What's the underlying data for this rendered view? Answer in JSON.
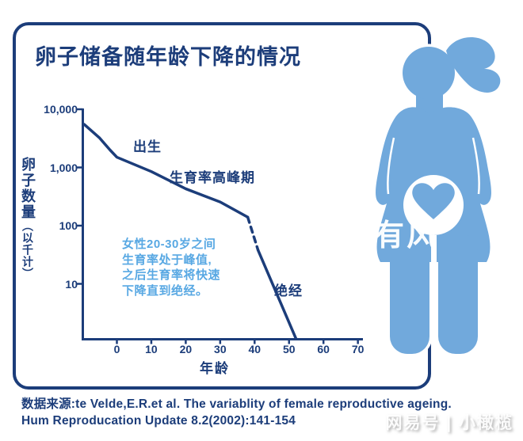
{
  "title": "卵子储备随年龄下降的情况",
  "colors": {
    "navy": "#1c3d7a",
    "figure_blue": "#71a9dc",
    "note_blue": "#58a8e3"
  },
  "chart_data": {
    "type": "line",
    "title": "卵子储备随年龄下降的情况",
    "xlabel": "年龄",
    "ylabel_main": "卵子数量",
    "ylabel_sub": "（以千计）",
    "y_scale": "log",
    "x_range": [
      -10,
      70
    ],
    "x_ticks": [
      0,
      10,
      20,
      30,
      40,
      50,
      60,
      70
    ],
    "y_tick_labels": [
      "10,000",
      "1,000",
      "100",
      "10"
    ],
    "y_tick_values": [
      10000,
      1000,
      100,
      10
    ],
    "grid": false,
    "legend": "none",
    "series": [
      {
        "name": "卵子数量（以千计）",
        "points": [
          {
            "age": -9.5,
            "value": 5500,
            "segment": "solid"
          },
          {
            "age": -5,
            "value": 3200,
            "segment": "solid"
          },
          {
            "age": -2,
            "value": 2000,
            "segment": "solid"
          },
          {
            "age": 0,
            "value": 1500,
            "segment": "solid"
          },
          {
            "age": 10,
            "value": 850,
            "segment": "solid"
          },
          {
            "age": 20,
            "value": 430,
            "segment": "solid"
          },
          {
            "age": 30,
            "value": 255,
            "segment": "solid"
          },
          {
            "age": 38,
            "value": 140,
            "segment": "solid"
          },
          {
            "age": 41,
            "value": 38,
            "segment": "dashed"
          },
          {
            "age": 52,
            "value": 1.15,
            "segment": "solid"
          }
        ]
      }
    ],
    "annotations": [
      {
        "text": "出生"
      },
      {
        "text": "生育率高峰期"
      },
      {
        "text": "绝经"
      }
    ],
    "note_lines": [
      "女性20-30岁之间",
      "生育率处于峰值,",
      "之后生育率将快速",
      "下降直到绝经。"
    ]
  },
  "figure": {
    "description": "pregnant-woman-silhouette-with-heart"
  },
  "source": {
    "line1": "数据来源:te Velde,E.R.et al. The variablity of female reproductive ageing.",
    "line2": "Hum Reproducation Update 8.2(2002):141-154"
  },
  "watermarks": {
    "center": "有风",
    "bottom": "网易号 | 小橄榄"
  }
}
